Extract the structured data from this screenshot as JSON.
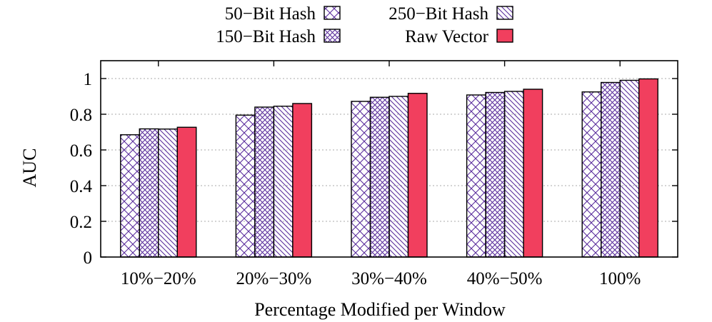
{
  "chart_data": {
    "type": "bar",
    "title": "",
    "xlabel": "Percentage Modified per Window",
    "ylabel": "AUC",
    "ylim": [
      0,
      1.1
    ],
    "yticks": [
      0,
      0.2,
      0.4,
      0.6,
      0.8,
      1
    ],
    "ytick_labels": [
      "0",
      "0.2",
      "0.4",
      "0.6",
      "0.8",
      "1"
    ],
    "grid": true,
    "legend_position": "top",
    "categories": [
      "10%−20%",
      "20%−30%",
      "30%−40%",
      "40%−50%",
      "100%"
    ],
    "series": [
      {
        "name": "50−Bit Hash",
        "values": [
          0.685,
          0.795,
          0.872,
          0.908,
          0.925
        ],
        "pattern": "crosshatch",
        "color": "#5a2d9c"
      },
      {
        "name": "150−Bit Hash",
        "values": [
          0.718,
          0.84,
          0.895,
          0.922,
          0.978
        ],
        "pattern": "dense-crosshatch",
        "color": "#5a2d9c"
      },
      {
        "name": "250−Bit Hash",
        "values": [
          0.717,
          0.845,
          0.9,
          0.928,
          0.99
        ],
        "pattern": "diagonal",
        "color": "#5a2d9c"
      },
      {
        "name": "Raw Vector",
        "values": [
          0.727,
          0.86,
          0.917,
          0.94,
          0.998
        ],
        "pattern": "solid",
        "color": "#f13f5e"
      }
    ]
  }
}
